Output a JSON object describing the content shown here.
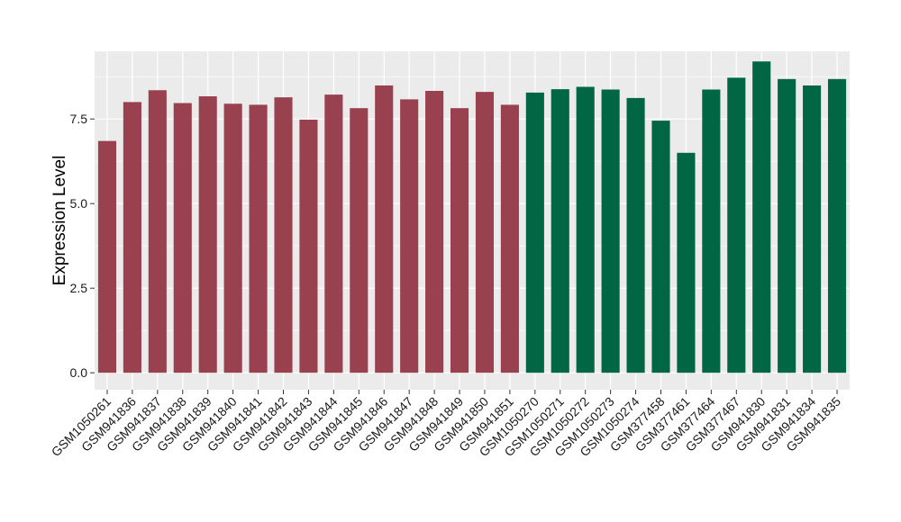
{
  "chart_data": {
    "type": "bar",
    "title": "",
    "xlabel": "",
    "ylabel": "Expression Level",
    "ylim": [
      -0.5,
      9.5
    ],
    "yticks": [
      0.0,
      2.5,
      5.0,
      7.5
    ],
    "ytick_labels": [
      "0.0",
      "2.5",
      "5.0",
      "7.5"
    ],
    "grid": true,
    "legend": "none",
    "background_color": "#ebebeb",
    "grid_color": "#ffffff",
    "categories": [
      "GSM1050261",
      "GSM941836",
      "GSM941837",
      "GSM941838",
      "GSM941839",
      "GSM941840",
      "GSM941841",
      "GSM941842",
      "GSM941843",
      "GSM941844",
      "GSM941845",
      "GSM941846",
      "GSM941847",
      "GSM941848",
      "GSM941849",
      "GSM941850",
      "GSM941851",
      "GSM1050270",
      "GSM1050271",
      "GSM1050272",
      "GSM1050273",
      "GSM1050274",
      "GSM377458",
      "GSM377461",
      "GSM377464",
      "GSM377467",
      "GSM941830",
      "GSM941831",
      "GSM941834",
      "GSM941835"
    ],
    "values": [
      6.85,
      8.0,
      8.35,
      7.97,
      8.17,
      7.95,
      7.92,
      8.14,
      7.48,
      8.22,
      7.82,
      8.49,
      8.08,
      8.33,
      7.82,
      8.3,
      7.92,
      8.28,
      8.38,
      8.45,
      8.37,
      8.12,
      7.45,
      6.5,
      8.37,
      8.72,
      9.2,
      8.68,
      8.49,
      8.68
    ],
    "bar_colors": [
      "#9a4150",
      "#9a4150",
      "#9a4150",
      "#9a4150",
      "#9a4150",
      "#9a4150",
      "#9a4150",
      "#9a4150",
      "#9a4150",
      "#9a4150",
      "#9a4150",
      "#9a4150",
      "#9a4150",
      "#9a4150",
      "#9a4150",
      "#9a4150",
      "#9a4150",
      "#006644",
      "#006644",
      "#006644",
      "#006644",
      "#006644",
      "#006644",
      "#006644",
      "#006644",
      "#006644",
      "#006644",
      "#006644",
      "#006644",
      "#006644"
    ]
  }
}
